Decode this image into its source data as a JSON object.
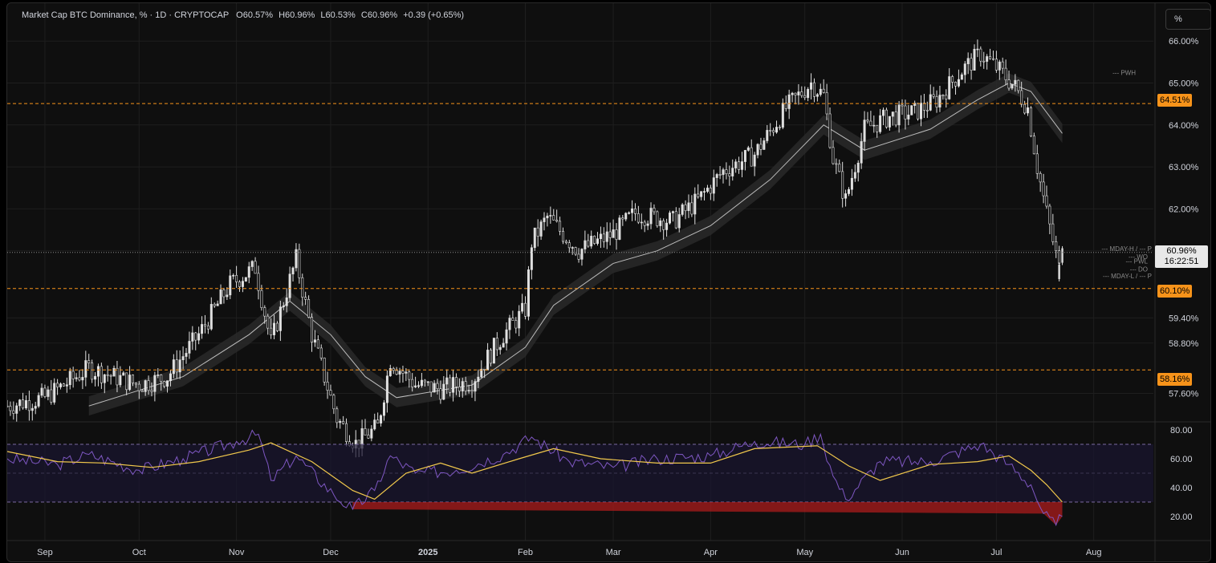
{
  "legend": {
    "symbol": "Market Cap BTC Dominance, % · 1D · CRYPTOCAP",
    "open_label": "O",
    "open": "60.57%",
    "high_label": "H",
    "high": "60.96%",
    "low_label": "L",
    "low": "60.53%",
    "close_label": "C",
    "close": "60.96%",
    "change": "+0.39 (+0.65%)"
  },
  "scale_button": "%",
  "price_badge": {
    "price": "60.96%",
    "countdown": "16:22:51"
  },
  "level_badges": [
    "64.51%",
    "60.10%",
    "58.16%"
  ],
  "line_tags": {
    "pwh": "PWH",
    "mday_h": "MDAY-H / --- P",
    "wo": "WO",
    "pwl": "PWL",
    "do": "DO",
    "mday_l": "MDAY-L / --- P"
  },
  "colors": {
    "bg": "#0f0f0f",
    "grid": "#1e1e1e",
    "candle": "#e0e0e0",
    "level": "#f7931a",
    "ma": "#bdbdbd",
    "rsi": "#7e57c2",
    "rsi_ma": "#f2c94c",
    "rsi_band": "#1a1630",
    "rsi_oversold_fill": "#b71c1c"
  },
  "chart_data": {
    "type": "candlestick",
    "price_axis": {
      "ticks": [
        "66.00%",
        "65.00%",
        "64.00%",
        "63.00%",
        "62.00%",
        "60.96%",
        "59.40%",
        "58.80%",
        "57.60%"
      ],
      "tick_values": [
        66.0,
        65.0,
        64.0,
        63.0,
        62.0,
        61.0,
        59.4,
        58.8,
        57.6
      ]
    },
    "time_axis": [
      "Sep",
      "Oct",
      "Nov",
      "Dec",
      "2025",
      "Feb",
      "Mar",
      "Apr",
      "May",
      "Jun",
      "Jul",
      "Aug"
    ],
    "horizontal_levels": [
      64.51,
      60.1,
      58.16
    ],
    "last_price": 60.96,
    "close_series": [
      {
        "date": "2024-08-20",
        "close": 57.3
      },
      {
        "date": "2024-09-01",
        "close": 57.5
      },
      {
        "date": "2024-09-15",
        "close": 58.2
      },
      {
        "date": "2024-10-01",
        "close": 57.8
      },
      {
        "date": "2024-10-10",
        "close": 58.0
      },
      {
        "date": "2024-10-20",
        "close": 59.0
      },
      {
        "date": "2024-10-30",
        "close": 60.2
      },
      {
        "date": "2024-11-07",
        "close": 60.6
      },
      {
        "date": "2024-11-12",
        "close": 58.8
      },
      {
        "date": "2024-11-20",
        "close": 60.8
      },
      {
        "date": "2024-11-25",
        "close": 59.0
      },
      {
        "date": "2024-12-03",
        "close": 57.0
      },
      {
        "date": "2024-12-09",
        "close": 56.4
      },
      {
        "date": "2024-12-16",
        "close": 56.8
      },
      {
        "date": "2024-12-20",
        "close": 58.4
      },
      {
        "date": "2024-12-28",
        "close": 57.8
      },
      {
        "date": "2025-01-05",
        "close": 57.7
      },
      {
        "date": "2025-01-15",
        "close": 57.9
      },
      {
        "date": "2025-01-25",
        "close": 59.0
      },
      {
        "date": "2025-02-01",
        "close": 59.6
      },
      {
        "date": "2025-02-03",
        "close": 61.2
      },
      {
        "date": "2025-02-08",
        "close": 61.8
      },
      {
        "date": "2025-02-18",
        "close": 61.0
      },
      {
        "date": "2025-03-01",
        "close": 61.4
      },
      {
        "date": "2025-03-08",
        "close": 61.9
      },
      {
        "date": "2025-03-20",
        "close": 61.7
      },
      {
        "date": "2025-03-28",
        "close": 62.2
      },
      {
        "date": "2025-04-05",
        "close": 62.9
      },
      {
        "date": "2025-04-15",
        "close": 63.3
      },
      {
        "date": "2025-04-25",
        "close": 64.4
      },
      {
        "date": "2025-05-03",
        "close": 65.0
      },
      {
        "date": "2025-05-07",
        "close": 64.7
      },
      {
        "date": "2025-05-10",
        "close": 63.2
      },
      {
        "date": "2025-05-14",
        "close": 62.2
      },
      {
        "date": "2025-05-20",
        "close": 63.9
      },
      {
        "date": "2025-05-28",
        "close": 64.2
      },
      {
        "date": "2025-06-05",
        "close": 64.3
      },
      {
        "date": "2025-06-12",
        "close": 64.6
      },
      {
        "date": "2025-06-20",
        "close": 65.3
      },
      {
        "date": "2025-06-26",
        "close": 65.7
      },
      {
        "date": "2025-07-02",
        "close": 65.3
      },
      {
        "date": "2025-07-07",
        "close": 64.9
      },
      {
        "date": "2025-07-11",
        "close": 64.4
      },
      {
        "date": "2025-07-14",
        "close": 63.0
      },
      {
        "date": "2025-07-17",
        "close": 61.9
      },
      {
        "date": "2025-07-20",
        "close": 60.9
      },
      {
        "date": "2025-07-21",
        "close": 60.57
      },
      {
        "date": "2025-07-22",
        "close": 60.96
      }
    ],
    "ma_series": [
      {
        "date": "2024-09-15",
        "value": 57.3
      },
      {
        "date": "2024-10-15",
        "value": 58.0
      },
      {
        "date": "2024-11-05",
        "value": 59.0
      },
      {
        "date": "2024-11-18",
        "value": 59.8
      },
      {
        "date": "2024-12-01",
        "value": 59.0
      },
      {
        "date": "2024-12-12",
        "value": 58.0
      },
      {
        "date": "2024-12-22",
        "value": 57.5
      },
      {
        "date": "2025-01-15",
        "value": 57.8
      },
      {
        "date": "2025-02-01",
        "value": 58.7
      },
      {
        "date": "2025-02-10",
        "value": 59.7
      },
      {
        "date": "2025-03-01",
        "value": 60.7
      },
      {
        "date": "2025-03-15",
        "value": 61.0
      },
      {
        "date": "2025-04-01",
        "value": 61.6
      },
      {
        "date": "2025-04-20",
        "value": 62.7
      },
      {
        "date": "2025-05-07",
        "value": 64.0
      },
      {
        "date": "2025-05-20",
        "value": 63.4
      },
      {
        "date": "2025-06-10",
        "value": 63.9
      },
      {
        "date": "2025-06-25",
        "value": 64.6
      },
      {
        "date": "2025-07-05",
        "value": 65.0
      },
      {
        "date": "2025-07-12",
        "value": 64.8
      },
      {
        "date": "2025-07-22",
        "value": 63.8
      }
    ],
    "rsi": {
      "axis_ticks": [
        "80.00",
        "60.00",
        "40.00",
        "20.00"
      ],
      "tick_values": [
        80,
        60,
        40,
        20
      ],
      "bands": [
        70,
        50,
        30
      ],
      "rsi_series": [
        {
          "date": "2024-08-20",
          "value": 60
        },
        {
          "date": "2024-09-05",
          "value": 56
        },
        {
          "date": "2024-09-15",
          "value": 63
        },
        {
          "date": "2024-10-01",
          "value": 52
        },
        {
          "date": "2024-10-15",
          "value": 60
        },
        {
          "date": "2024-11-01",
          "value": 72
        },
        {
          "date": "2024-11-08",
          "value": 77
        },
        {
          "date": "2024-11-12",
          "value": 45
        },
        {
          "date": "2024-11-20",
          "value": 62
        },
        {
          "date": "2024-12-02",
          "value": 35
        },
        {
          "date": "2024-12-08",
          "value": 25
        },
        {
          "date": "2024-12-15",
          "value": 38
        },
        {
          "date": "2024-12-20",
          "value": 62
        },
        {
          "date": "2024-12-28",
          "value": 50
        },
        {
          "date": "2025-01-10",
          "value": 52
        },
        {
          "date": "2025-01-25",
          "value": 63
        },
        {
          "date": "2025-02-03",
          "value": 75
        },
        {
          "date": "2025-02-15",
          "value": 58
        },
        {
          "date": "2025-03-01",
          "value": 54
        },
        {
          "date": "2025-03-15",
          "value": 60
        },
        {
          "date": "2025-04-01",
          "value": 62
        },
        {
          "date": "2025-04-15",
          "value": 72
        },
        {
          "date": "2025-05-01",
          "value": 70
        },
        {
          "date": "2025-05-06",
          "value": 77
        },
        {
          "date": "2025-05-10",
          "value": 48
        },
        {
          "date": "2025-05-14",
          "value": 32
        },
        {
          "date": "2025-05-25",
          "value": 58
        },
        {
          "date": "2025-06-10",
          "value": 58
        },
        {
          "date": "2025-06-26",
          "value": 70
        },
        {
          "date": "2025-07-05",
          "value": 56
        },
        {
          "date": "2025-07-12",
          "value": 42
        },
        {
          "date": "2025-07-16",
          "value": 22
        },
        {
          "date": "2025-07-20",
          "value": 14
        },
        {
          "date": "2025-07-22",
          "value": 20
        }
      ],
      "ma_series": [
        {
          "date": "2024-08-20",
          "value": 65
        },
        {
          "date": "2024-09-05",
          "value": 58
        },
        {
          "date": "2024-09-20",
          "value": 57
        },
        {
          "date": "2024-10-05",
          "value": 54
        },
        {
          "date": "2024-10-20",
          "value": 58
        },
        {
          "date": "2024-11-05",
          "value": 66
        },
        {
          "date": "2024-11-12",
          "value": 71
        },
        {
          "date": "2024-11-25",
          "value": 58
        },
        {
          "date": "2024-12-08",
          "value": 38
        },
        {
          "date": "2024-12-15",
          "value": 32
        },
        {
          "date": "2024-12-25",
          "value": 50
        },
        {
          "date": "2025-01-05",
          "value": 57
        },
        {
          "date": "2025-01-15",
          "value": 50
        },
        {
          "date": "2025-01-30",
          "value": 60
        },
        {
          "date": "2025-02-10",
          "value": 67
        },
        {
          "date": "2025-02-25",
          "value": 60
        },
        {
          "date": "2025-03-15",
          "value": 57
        },
        {
          "date": "2025-04-01",
          "value": 57
        },
        {
          "date": "2025-04-15",
          "value": 67
        },
        {
          "date": "2025-05-05",
          "value": 69
        },
        {
          "date": "2025-05-15",
          "value": 55
        },
        {
          "date": "2025-05-25",
          "value": 45
        },
        {
          "date": "2025-06-10",
          "value": 56
        },
        {
          "date": "2025-06-25",
          "value": 58
        },
        {
          "date": "2025-07-05",
          "value": 62
        },
        {
          "date": "2025-07-12",
          "value": 52
        },
        {
          "date": "2025-07-17",
          "value": 42
        },
        {
          "date": "2025-07-22",
          "value": 30
        }
      ]
    }
  }
}
